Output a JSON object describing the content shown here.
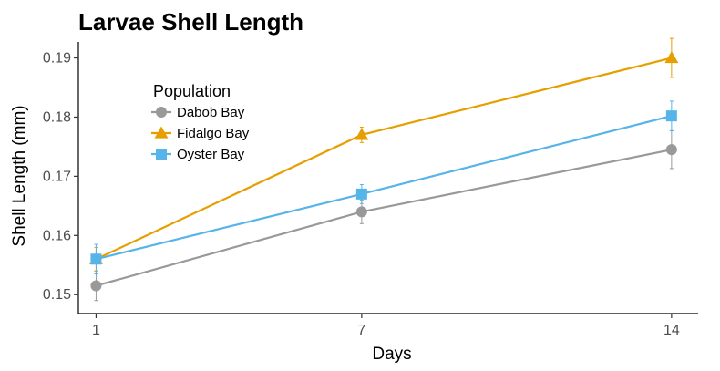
{
  "chart_data": {
    "type": "line",
    "title": "Larvae Shell Length",
    "xlabel": "Days",
    "ylabel": "Shell Length (mm)",
    "x": [
      1,
      7,
      14
    ],
    "xticks": [
      "1",
      "7",
      "14"
    ],
    "yticks": [
      "0.15",
      "0.16",
      "0.17",
      "0.18",
      "0.19"
    ],
    "xlim": [
      0.6,
      14.6
    ],
    "ylim": [
      0.1468,
      0.1927
    ],
    "grid": false,
    "legend": {
      "title": "Population",
      "position": "top-left"
    },
    "series": [
      {
        "name": "Dabob Bay",
        "color": "#999999",
        "marker": "circle",
        "values": [
          0.1515,
          0.164,
          0.1745
        ],
        "error": [
          0.0025,
          0.002,
          0.0032
        ]
      },
      {
        "name": "Fidalgo Bay",
        "color": "#E69F00",
        "marker": "triangle",
        "values": [
          0.156,
          0.177,
          0.19
        ],
        "error": [
          0.002,
          0.0013,
          0.0033
        ]
      },
      {
        "name": "Oyster Bay",
        "color": "#56B4E9",
        "marker": "square",
        "values": [
          0.156,
          0.167,
          0.1802
        ],
        "error": [
          0.0025,
          0.0016,
          0.0025
        ]
      }
    ]
  }
}
